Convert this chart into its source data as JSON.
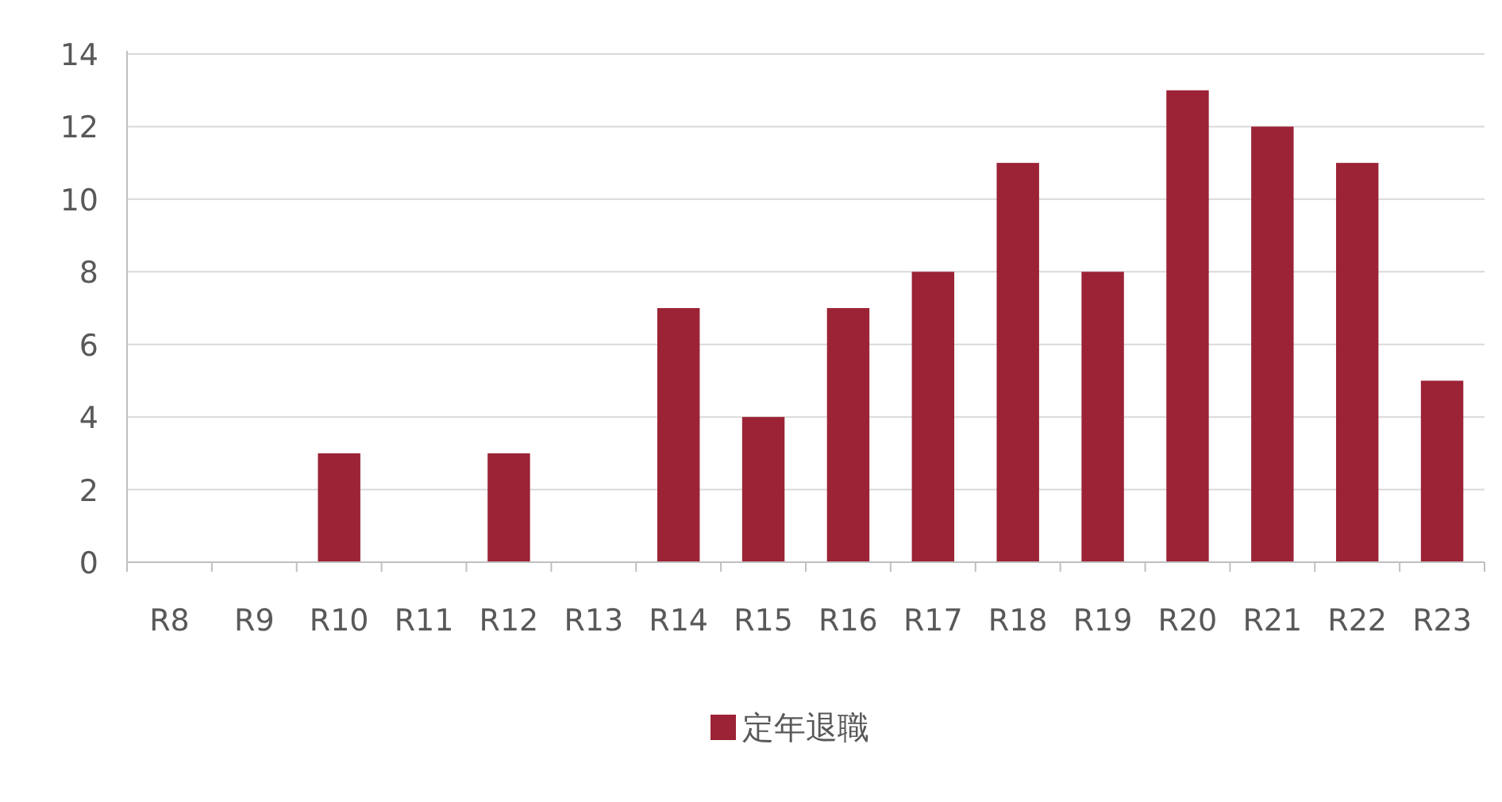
{
  "chart_data": {
    "type": "bar",
    "categories": [
      "R8",
      "R9",
      "R10",
      "R11",
      "R12",
      "R13",
      "R14",
      "R15",
      "R16",
      "R17",
      "R18",
      "R19",
      "R20",
      "R21",
      "R22",
      "R23"
    ],
    "series": [
      {
        "name": "定年退職",
        "color": "#9b2335",
        "values": [
          0,
          0,
          3,
          0,
          3,
          0,
          7,
          4,
          7,
          8,
          11,
          8,
          13,
          12,
          11,
          5
        ]
      }
    ],
    "ylim": [
      0,
      14
    ],
    "yticks": [
      0,
      2,
      4,
      6,
      8,
      10,
      12,
      14
    ],
    "grid": "y",
    "legend": "bottom"
  }
}
